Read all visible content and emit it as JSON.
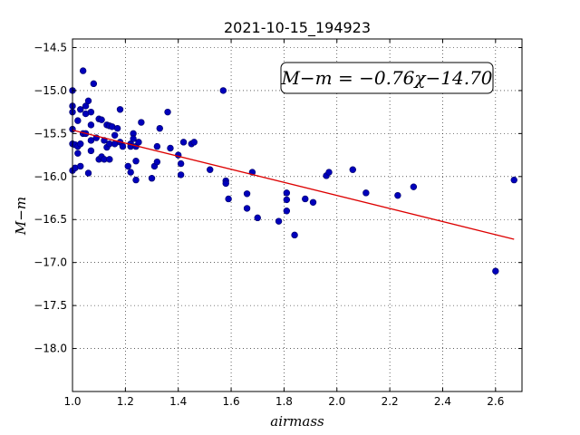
{
  "chart_data": {
    "type": "scatter",
    "title": "2021-10-15_194923",
    "xlabel": "airmass",
    "ylabel": "M−m",
    "xlim": [
      1.0,
      2.7
    ],
    "ylim": [
      -14.4,
      -18.5
    ],
    "y_inverted": true,
    "xticks": [
      1.0,
      1.2,
      1.4,
      1.6,
      1.8,
      2.0,
      2.2,
      2.4,
      2.6
    ],
    "xtick_labels": [
      "1.0",
      "1.2",
      "1.4",
      "1.6",
      "1.8",
      "2.0",
      "2.2",
      "2.4",
      "2.6"
    ],
    "yticks": [
      -14.5,
      -15.0,
      -15.5,
      -16.0,
      -16.5,
      -17.0,
      -17.5,
      -18.0
    ],
    "ytick_labels": [
      "−14.5",
      "−15.0",
      "−15.5",
      "−16.0",
      "−16.5",
      "−17.0",
      "−17.5",
      "−18.0"
    ],
    "grid": true,
    "annotation": "M−m = −0.76χ−14.70",
    "fit": {
      "slope": -0.76,
      "intercept": -14.7,
      "x_range": [
        1.0,
        2.67
      ],
      "color": "#dd0000"
    },
    "point_color": "#0000bb",
    "points": [
      [
        1.0,
        -15.0
      ],
      [
        1.0,
        -15.18
      ],
      [
        1.0,
        -15.25
      ],
      [
        1.0,
        -15.45
      ],
      [
        1.0,
        -15.62
      ],
      [
        1.0,
        -15.93
      ],
      [
        1.01,
        -15.63
      ],
      [
        1.01,
        -15.9
      ],
      [
        1.02,
        -15.35
      ],
      [
        1.02,
        -15.65
      ],
      [
        1.02,
        -15.73
      ],
      [
        1.03,
        -15.22
      ],
      [
        1.03,
        -15.62
      ],
      [
        1.03,
        -15.88
      ],
      [
        1.04,
        -14.77
      ],
      [
        1.04,
        -15.5
      ],
      [
        1.05,
        -15.18
      ],
      [
        1.05,
        -15.27
      ],
      [
        1.05,
        -15.5
      ],
      [
        1.06,
        -15.12
      ],
      [
        1.06,
        -15.96
      ],
      [
        1.07,
        -15.25
      ],
      [
        1.07,
        -15.4
      ],
      [
        1.07,
        -15.58
      ],
      [
        1.07,
        -15.7
      ],
      [
        1.08,
        -14.92
      ],
      [
        1.09,
        -15.55
      ],
      [
        1.1,
        -15.33
      ],
      [
        1.1,
        -15.8
      ],
      [
        1.11,
        -15.34
      ],
      [
        1.11,
        -15.77
      ],
      [
        1.12,
        -15.58
      ],
      [
        1.12,
        -15.8
      ],
      [
        1.13,
        -15.4
      ],
      [
        1.13,
        -15.66
      ],
      [
        1.14,
        -15.41
      ],
      [
        1.14,
        -15.62
      ],
      [
        1.14,
        -15.8
      ],
      [
        1.15,
        -15.42
      ],
      [
        1.16,
        -15.52
      ],
      [
        1.16,
        -15.62
      ],
      [
        1.17,
        -15.44
      ],
      [
        1.18,
        -15.22
      ],
      [
        1.18,
        -15.6
      ],
      [
        1.19,
        -15.65
      ],
      [
        1.21,
        -15.88
      ],
      [
        1.22,
        -15.62
      ],
      [
        1.22,
        -15.65
      ],
      [
        1.22,
        -15.95
      ],
      [
        1.23,
        -15.5
      ],
      [
        1.23,
        -15.56
      ],
      [
        1.24,
        -15.65
      ],
      [
        1.24,
        -15.82
      ],
      [
        1.24,
        -16.04
      ],
      [
        1.25,
        -15.6
      ],
      [
        1.26,
        -15.37
      ],
      [
        1.3,
        -16.02
      ],
      [
        1.31,
        -15.88
      ],
      [
        1.32,
        -15.65
      ],
      [
        1.32,
        -15.83
      ],
      [
        1.33,
        -15.44
      ],
      [
        1.36,
        -15.25
      ],
      [
        1.37,
        -15.67
      ],
      [
        1.4,
        -15.75
      ],
      [
        1.41,
        -15.85
      ],
      [
        1.41,
        -15.98
      ],
      [
        1.42,
        -15.6
      ],
      [
        1.45,
        -15.62
      ],
      [
        1.46,
        -15.6
      ],
      [
        1.52,
        -15.92
      ],
      [
        1.57,
        -15.0
      ],
      [
        1.58,
        -16.05
      ],
      [
        1.58,
        -16.08
      ],
      [
        1.59,
        -16.26
      ],
      [
        1.66,
        -16.2
      ],
      [
        1.66,
        -16.37
      ],
      [
        1.68,
        -15.95
      ],
      [
        1.7,
        -16.48
      ],
      [
        1.78,
        -16.52
      ],
      [
        1.81,
        -16.19
      ],
      [
        1.81,
        -16.27
      ],
      [
        1.81,
        -16.4
      ],
      [
        1.84,
        -16.68
      ],
      [
        1.88,
        -16.26
      ],
      [
        1.91,
        -16.3
      ],
      [
        1.96,
        -15.99
      ],
      [
        1.97,
        -15.95
      ],
      [
        2.06,
        -15.92
      ],
      [
        2.11,
        -16.19
      ],
      [
        2.23,
        -16.22
      ],
      [
        2.29,
        -16.12
      ],
      [
        2.6,
        -17.1
      ],
      [
        2.67,
        -16.04
      ]
    ]
  }
}
